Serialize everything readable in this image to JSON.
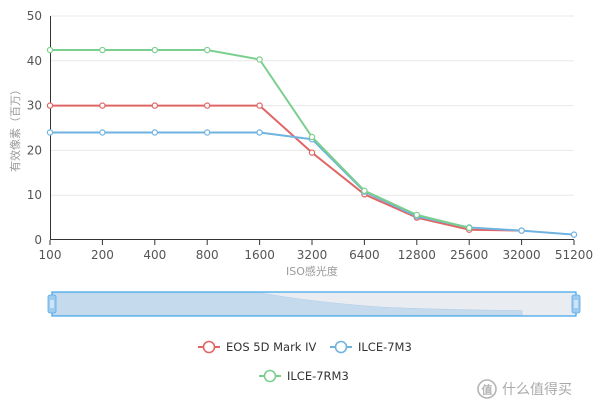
{
  "chart_data": {
    "type": "line",
    "xlabel": "ISO感光度",
    "ylabel": "有效像素（百万）",
    "categories": [
      "100",
      "200",
      "400",
      "800",
      "1600",
      "3200",
      "6400",
      "12800",
      "25600",
      "32000",
      "51200"
    ],
    "ylim": [
      0,
      50
    ],
    "yticks": [
      0,
      10,
      20,
      30,
      40,
      50
    ],
    "grid": true,
    "legend_position": "bottom",
    "series": [
      {
        "name": "EOS 5D Mark IV",
        "color": "#e06666",
        "values": [
          30,
          30,
          30,
          30,
          30,
          19.5,
          10.2,
          5,
          2.3,
          2.1,
          null
        ]
      },
      {
        "name": "ILCE-7M3",
        "color": "#6fb3e0",
        "values": [
          24,
          24,
          24,
          24,
          24,
          22.5,
          10.8,
          5.3,
          2.8,
          2.1,
          1.2
        ]
      },
      {
        "name": "ILCE-7RM3",
        "color": "#7acf8e",
        "values": [
          42.4,
          42.4,
          42.4,
          42.4,
          40.3,
          23,
          11,
          5.6,
          2.7,
          null,
          null
        ]
      }
    ],
    "data_zoom": {
      "start": 0,
      "end": 100
    }
  },
  "watermark": {
    "icon": "value-badge-icon",
    "text": "什么值得买"
  }
}
